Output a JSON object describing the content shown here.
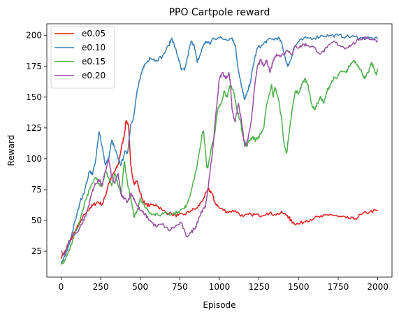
{
  "chart_data": {
    "type": "line",
    "title": "PPO Cartpole reward",
    "xlabel": "Episode",
    "ylabel": "Reward",
    "xlim": [
      -90,
      2090
    ],
    "ylim": [
      4,
      209.5
    ],
    "xticks": [
      0,
      250,
      500,
      750,
      1000,
      1250,
      1500,
      1750,
      2000
    ],
    "yticks": [
      25,
      50,
      75,
      100,
      125,
      150,
      175,
      200
    ],
    "grid": false,
    "legend_position": "top-left",
    "series": [
      {
        "name": "e0.05",
        "color": "#e41a1c",
        "points": [
          [
            0,
            20
          ],
          [
            25,
            25
          ],
          [
            50,
            30
          ],
          [
            75,
            38
          ],
          [
            100,
            44
          ],
          [
            120,
            48
          ],
          [
            150,
            55
          ],
          [
            180,
            60
          ],
          [
            200,
            62
          ],
          [
            230,
            65
          ],
          [
            260,
            63
          ],
          [
            280,
            70
          ],
          [
            300,
            80
          ],
          [
            320,
            85
          ],
          [
            340,
            90
          ],
          [
            360,
            95
          ],
          [
            380,
            108
          ],
          [
            400,
            120
          ],
          [
            410,
            131
          ],
          [
            425,
            128
          ],
          [
            440,
            95
          ],
          [
            460,
            80
          ],
          [
            480,
            82
          ],
          [
            500,
            72
          ],
          [
            530,
            63
          ],
          [
            560,
            62
          ],
          [
            600,
            63
          ],
          [
            640,
            58
          ],
          [
            700,
            55
          ],
          [
            740,
            54
          ],
          [
            780,
            55
          ],
          [
            820,
            58
          ],
          [
            860,
            60
          ],
          [
            900,
            68
          ],
          [
            930,
            75
          ],
          [
            950,
            73
          ],
          [
            970,
            65
          ],
          [
            1000,
            60
          ],
          [
            1050,
            57
          ],
          [
            1100,
            58
          ],
          [
            1150,
            53
          ],
          [
            1200,
            55
          ],
          [
            1250,
            54
          ],
          [
            1300,
            56
          ],
          [
            1350,
            55
          ],
          [
            1400,
            56
          ],
          [
            1430,
            54
          ],
          [
            1450,
            50
          ],
          [
            1470,
            48
          ],
          [
            1500,
            47
          ],
          [
            1550,
            50
          ],
          [
            1600,
            52
          ],
          [
            1650,
            53
          ],
          [
            1700,
            55
          ],
          [
            1750,
            53
          ],
          [
            1800,
            52
          ],
          [
            1850,
            51
          ],
          [
            1900,
            55
          ],
          [
            1950,
            57
          ],
          [
            2000,
            58
          ]
        ]
      },
      {
        "name": "e0.10",
        "color": "#377eb8",
        "points": [
          [
            0,
            15
          ],
          [
            30,
            22
          ],
          [
            60,
            35
          ],
          [
            90,
            50
          ],
          [
            120,
            65
          ],
          [
            150,
            75
          ],
          [
            180,
            90
          ],
          [
            200,
            88
          ],
          [
            220,
            100
          ],
          [
            240,
            122
          ],
          [
            260,
            110
          ],
          [
            280,
            95
          ],
          [
            300,
            100
          ],
          [
            320,
            115
          ],
          [
            340,
            108
          ],
          [
            360,
            100
          ],
          [
            380,
            95
          ],
          [
            400,
            105
          ],
          [
            420,
            105
          ],
          [
            440,
            128
          ],
          [
            460,
            135
          ],
          [
            480,
            155
          ],
          [
            500,
            165
          ],
          [
            520,
            175
          ],
          [
            540,
            178
          ],
          [
            560,
            182
          ],
          [
            600,
            180
          ],
          [
            640,
            183
          ],
          [
            680,
            192
          ],
          [
            700,
            198
          ],
          [
            720,
            190
          ],
          [
            740,
            182
          ],
          [
            760,
            172
          ],
          [
            780,
            172
          ],
          [
            800,
            183
          ],
          [
            820,
            195
          ],
          [
            840,
            193
          ],
          [
            860,
            178
          ],
          [
            880,
            185
          ],
          [
            900,
            193
          ],
          [
            920,
            195
          ],
          [
            940,
            193
          ],
          [
            960,
            198
          ],
          [
            1000,
            198
          ],
          [
            1040,
            197
          ],
          [
            1080,
            198
          ],
          [
            1100,
            192
          ],
          [
            1120,
            172
          ],
          [
            1140,
            158
          ],
          [
            1160,
            148
          ],
          [
            1180,
            155
          ],
          [
            1200,
            165
          ],
          [
            1220,
            180
          ],
          [
            1240,
            190
          ],
          [
            1270,
            192
          ],
          [
            1300,
            196
          ],
          [
            1340,
            197
          ],
          [
            1370,
            198
          ],
          [
            1390,
            195
          ],
          [
            1410,
            185
          ],
          [
            1430,
            175
          ],
          [
            1450,
            180
          ],
          [
            1470,
            190
          ],
          [
            1500,
            195
          ],
          [
            1550,
            198
          ],
          [
            1600,
            198
          ],
          [
            1650,
            200
          ],
          [
            1700,
            200
          ],
          [
            1750,
            200
          ],
          [
            1800,
            199
          ],
          [
            1850,
            199
          ],
          [
            1900,
            198
          ],
          [
            1950,
            198
          ],
          [
            2000,
            197
          ]
        ]
      },
      {
        "name": "e0.15",
        "color": "#4daf4a",
        "points": [
          [
            0,
            14
          ],
          [
            25,
            18
          ],
          [
            50,
            25
          ],
          [
            75,
            35
          ],
          [
            100,
            43
          ],
          [
            130,
            55
          ],
          [
            150,
            65
          ],
          [
            180,
            75
          ],
          [
            220,
            85
          ],
          [
            240,
            80
          ],
          [
            260,
            78
          ],
          [
            280,
            90
          ],
          [
            300,
            85
          ],
          [
            320,
            78
          ],
          [
            340,
            88
          ],
          [
            360,
            78
          ],
          [
            380,
            72
          ],
          [
            400,
            98
          ],
          [
            420,
            80
          ],
          [
            440,
            68
          ],
          [
            460,
            53
          ],
          [
            480,
            58
          ],
          [
            500,
            68
          ],
          [
            520,
            63
          ],
          [
            550,
            58
          ],
          [
            580,
            55
          ],
          [
            620,
            54
          ],
          [
            660,
            57
          ],
          [
            700,
            55
          ],
          [
            740,
            57
          ],
          [
            780,
            60
          ],
          [
            800,
            65
          ],
          [
            830,
            78
          ],
          [
            860,
            95
          ],
          [
            880,
            110
          ],
          [
            890,
            120
          ],
          [
            900,
            122
          ],
          [
            910,
            108
          ],
          [
            920,
            93
          ],
          [
            930,
            95
          ],
          [
            950,
            110
          ],
          [
            970,
            120
          ],
          [
            990,
            140
          ],
          [
            1010,
            145
          ],
          [
            1030,
            155
          ],
          [
            1050,
            150
          ],
          [
            1070,
            160
          ],
          [
            1090,
            155
          ],
          [
            1110,
            140
          ],
          [
            1130,
            132
          ],
          [
            1150,
            118
          ],
          [
            1170,
            110
          ],
          [
            1190,
            115
          ],
          [
            1210,
            118
          ],
          [
            1230,
            115
          ],
          [
            1260,
            120
          ],
          [
            1280,
            125
          ],
          [
            1300,
            145
          ],
          [
            1320,
            155
          ],
          [
            1330,
            160
          ],
          [
            1340,
            150
          ],
          [
            1350,
            158
          ],
          [
            1370,
            150
          ],
          [
            1390,
            135
          ],
          [
            1410,
            110
          ],
          [
            1425,
            105
          ],
          [
            1440,
            120
          ],
          [
            1460,
            140
          ],
          [
            1480,
            155
          ],
          [
            1500,
            153
          ],
          [
            1520,
            160
          ],
          [
            1540,
            165
          ],
          [
            1560,
            160
          ],
          [
            1580,
            145
          ],
          [
            1600,
            140
          ],
          [
            1620,
            145
          ],
          [
            1640,
            150
          ],
          [
            1660,
            145
          ],
          [
            1680,
            155
          ],
          [
            1700,
            160
          ],
          [
            1720,
            165
          ],
          [
            1740,
            165
          ],
          [
            1760,
            170
          ],
          [
            1800,
            170
          ],
          [
            1820,
            175
          ],
          [
            1850,
            180
          ],
          [
            1880,
            175
          ],
          [
            1900,
            170
          ],
          [
            1920,
            165
          ],
          [
            1940,
            170
          ],
          [
            1960,
            178
          ],
          [
            1980,
            172
          ],
          [
            1990,
            168
          ],
          [
            2000,
            172
          ]
        ]
      },
      {
        "name": "e0.20",
        "color": "#984ea3",
        "points": [
          [
            0,
            25
          ],
          [
            20,
            22
          ],
          [
            40,
            30
          ],
          [
            70,
            38
          ],
          [
            100,
            40
          ],
          [
            130,
            47
          ],
          [
            160,
            55
          ],
          [
            180,
            65
          ],
          [
            200,
            75
          ],
          [
            220,
            80
          ],
          [
            240,
            83
          ],
          [
            260,
            78
          ],
          [
            280,
            90
          ],
          [
            300,
            100
          ],
          [
            320,
            85
          ],
          [
            340,
            80
          ],
          [
            360,
            88
          ],
          [
            380,
            70
          ],
          [
            400,
            68
          ],
          [
            420,
            65
          ],
          [
            440,
            72
          ],
          [
            460,
            68
          ],
          [
            480,
            62
          ],
          [
            500,
            58
          ],
          [
            530,
            55
          ],
          [
            560,
            50
          ],
          [
            600,
            45
          ],
          [
            640,
            47
          ],
          [
            680,
            42
          ],
          [
            720,
            45
          ],
          [
            760,
            48
          ],
          [
            790,
            37
          ],
          [
            820,
            40
          ],
          [
            850,
            45
          ],
          [
            870,
            52
          ],
          [
            890,
            58
          ],
          [
            910,
            60
          ],
          [
            940,
            88
          ],
          [
            960,
            110
          ],
          [
            980,
            140
          ],
          [
            1000,
            165
          ],
          [
            1020,
            170
          ],
          [
            1040,
            165
          ],
          [
            1060,
            170
          ],
          [
            1070,
            160
          ],
          [
            1080,
            140
          ],
          [
            1100,
            130
          ],
          [
            1120,
            145
          ],
          [
            1140,
            130
          ],
          [
            1160,
            110
          ],
          [
            1180,
            115
          ],
          [
            1200,
            130
          ],
          [
            1220,
            155
          ],
          [
            1240,
            175
          ],
          [
            1260,
            180
          ],
          [
            1280,
            175
          ],
          [
            1300,
            180
          ],
          [
            1320,
            170
          ],
          [
            1340,
            180
          ],
          [
            1360,
            185
          ],
          [
            1380,
            183
          ],
          [
            1400,
            185
          ],
          [
            1430,
            188
          ],
          [
            1460,
            185
          ],
          [
            1480,
            192
          ],
          [
            1500,
            190
          ],
          [
            1530,
            193
          ],
          [
            1560,
            192
          ],
          [
            1600,
            190
          ],
          [
            1640,
            185
          ],
          [
            1680,
            190
          ],
          [
            1720,
            195
          ],
          [
            1760,
            192
          ],
          [
            1800,
            190
          ],
          [
            1840,
            193
          ],
          [
            1880,
            196
          ],
          [
            1920,
            199
          ],
          [
            1960,
            197
          ],
          [
            2000,
            196
          ]
        ]
      }
    ]
  }
}
